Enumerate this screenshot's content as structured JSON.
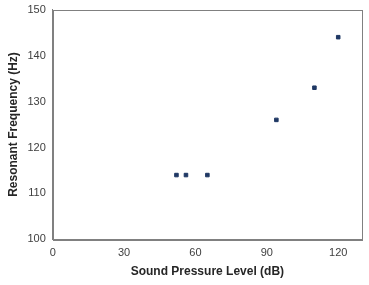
{
  "chart_data": {
    "type": "scatter",
    "xlabel": "Sound Pressure Level (dB)",
    "ylabel": "Resonant Frequency (Hz)",
    "x": [
      52,
      56,
      65,
      94,
      110,
      120
    ],
    "values": [
      114,
      114,
      114,
      126,
      133,
      144
    ],
    "color": "#1f3864",
    "marker": "square",
    "xlim": [
      0,
      130
    ],
    "xticks": [
      0,
      30,
      60,
      90,
      120
    ],
    "ylim": [
      100,
      150
    ],
    "yticks": [
      100,
      110,
      120,
      130,
      140,
      150
    ],
    "grid": false
  }
}
